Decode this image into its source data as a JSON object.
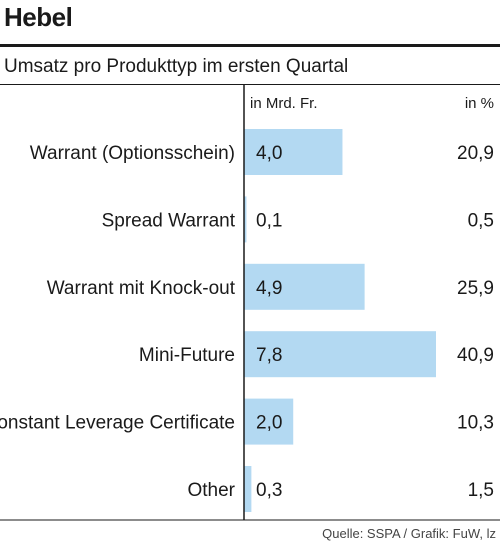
{
  "title": "Hebel",
  "subtitle": "Umsatz pro Produkttyp im ersten Quartal",
  "source": "Quelle: SSPA / Grafik: FuW, lz",
  "chart_data": {
    "type": "bar",
    "orientation": "horizontal",
    "column_headers": {
      "value": "in Mrd. Fr.",
      "share": "in %"
    },
    "categories": [
      "Warrant (Optionsschein)",
      "Spread Warrant",
      "Warrant mit Knock-out",
      "Mini-Future",
      "Constant Leverage Certificate",
      "Other"
    ],
    "values": [
      4.0,
      0.1,
      4.9,
      7.8,
      2.0,
      0.3
    ],
    "value_labels": [
      "4,0",
      "0,1",
      "4,9",
      "7,8",
      "2,0",
      "0,3"
    ],
    "shares": [
      "20,9",
      "0,5",
      "25,9",
      "40,9",
      "10,3",
      "1,5"
    ],
    "bar_color": "#b3d9f2",
    "xlim": [
      0,
      7.8
    ]
  }
}
